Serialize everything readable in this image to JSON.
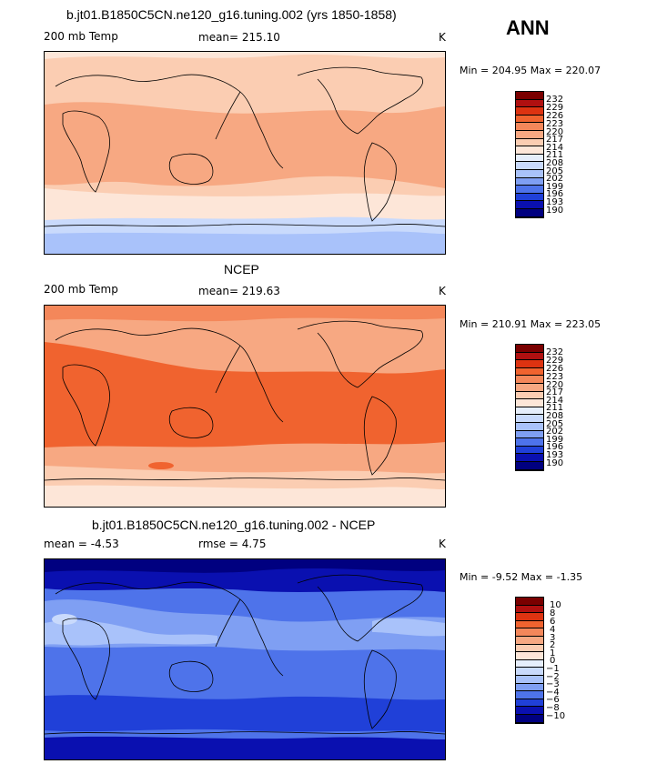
{
  "season": "ANN",
  "panels": [
    {
      "title": "b.jt01.B1850C5CN.ne120_g16.tuning.002 (yrs 1850-1858)",
      "left": "200 mb Temp",
      "center": "mean= 215.10",
      "units": "K",
      "minmax": "Min = 204.95 Max = 220.07",
      "levels": [
        "232",
        "229",
        "226",
        "223",
        "220",
        "217",
        "214",
        "211",
        "208",
        "205",
        "202",
        "199",
        "196",
        "193",
        "190"
      ]
    },
    {
      "title": "NCEP",
      "left": "200 mb Temp",
      "center": "mean= 219.63",
      "units": "K",
      "minmax": "Min = 210.91 Max = 223.05",
      "levels": [
        "232",
        "229",
        "226",
        "223",
        "220",
        "217",
        "214",
        "211",
        "208",
        "205",
        "202",
        "199",
        "196",
        "193",
        "190"
      ]
    },
    {
      "title": "b.jt01.B1850C5CN.ne120_g16.tuning.002 - NCEP",
      "left": "mean =   -4.53",
      "center": "rmse =    4.75",
      "units": "K",
      "minmax": "Min =  -9.52 Max =  -1.35",
      "levels": [
        "10",
        "8",
        "6",
        "4",
        "3",
        "2",
        "1",
        "0",
        "−1",
        "−2",
        "−3",
        "−4",
        "−6",
        "−8",
        "−10"
      ]
    }
  ],
  "palette": [
    "#7a0000",
    "#b01010",
    "#dd3311",
    "#f0632f",
    "#f4875a",
    "#f7a882",
    "#fbcdb2",
    "#fde6d8",
    "#e6eefb",
    "#c9dafc",
    "#a9c2fa",
    "#7f9ff3",
    "#4e73ea",
    "#2040d8",
    "#0a10b0",
    "#000080"
  ]
}
